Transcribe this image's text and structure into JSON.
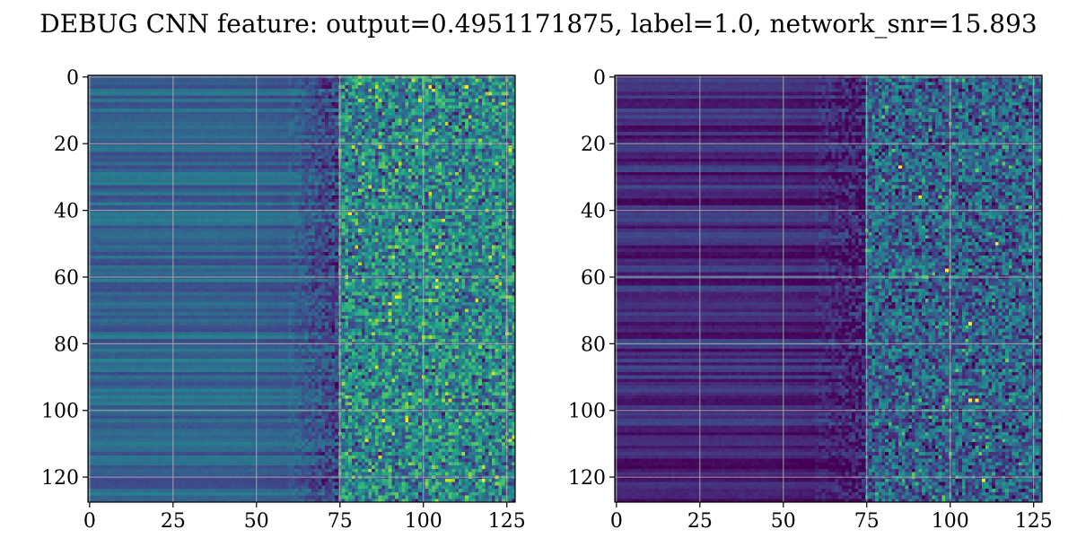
{
  "figure": {
    "title": "DEBUG CNN feature: output=0.4951171875, label=1.0, network_snr=15.893"
  },
  "chart_data": [
    {
      "type": "heatmap",
      "title": "",
      "xlabel": "",
      "ylabel": "",
      "colormap": "viridis",
      "rows": 128,
      "cols": 128,
      "xlim": [
        -0.5,
        127.5
      ],
      "ylim": [
        127.5,
        -0.5
      ],
      "xticks": [
        0,
        25,
        50,
        75,
        100,
        125
      ],
      "yticks": [
        0,
        20,
        40,
        60,
        80,
        100,
        120
      ],
      "grid": true,
      "pattern": {
        "left_columns_smooth_until": 60,
        "noisy_columns_from": 75,
        "base_level": 0.33,
        "noise_level": 0.55,
        "hot_spots": [
          [
            3,
            102
          ],
          [
            3,
            113
          ],
          [
            41,
            78
          ],
          [
            43,
            96
          ],
          [
            51,
            104
          ],
          [
            61,
            104
          ],
          [
            63,
            104
          ],
          [
            66,
            92
          ],
          [
            68,
            90
          ],
          [
            103,
            88
          ],
          [
            103,
            95
          ],
          [
            121,
            118
          ]
        ]
      }
    },
    {
      "type": "heatmap",
      "title": "",
      "xlabel": "",
      "ylabel": "",
      "colormap": "viridis",
      "rows": 128,
      "cols": 128,
      "xlim": [
        -0.5,
        127.5
      ],
      "ylim": [
        127.5,
        -0.5
      ],
      "xticks": [
        0,
        25,
        50,
        75,
        100,
        125
      ],
      "yticks": [
        0,
        20,
        40,
        60,
        80,
        100,
        120
      ],
      "grid": true,
      "pattern": {
        "left_columns_smooth_until": 60,
        "noisy_columns_from": 75,
        "base_level": 0.12,
        "noise_level": 0.5,
        "hot_spots": [
          [
            27,
            85
          ],
          [
            36,
            91
          ],
          [
            50,
            114
          ],
          [
            58,
            99
          ],
          [
            74,
            106
          ],
          [
            97,
            106
          ],
          [
            97,
            108
          ],
          [
            121,
            110
          ]
        ]
      }
    }
  ]
}
